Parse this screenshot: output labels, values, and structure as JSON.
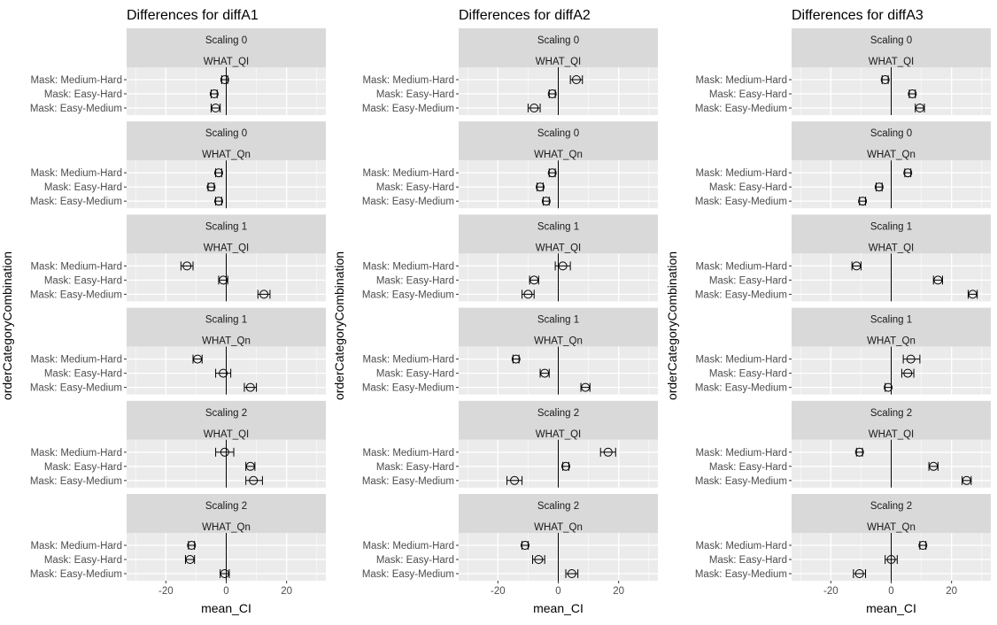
{
  "chart_data": [
    {
      "type": "scatter",
      "title": "Differences for diffA1",
      "xlabel": "mean_CI",
      "ylabel": "orderCategoryCombination",
      "xlim": [
        -33,
        33
      ],
      "xticks": [
        -20,
        0,
        20
      ],
      "categories": [
        "Mask: Medium-Hard",
        "Mask: Easy-Hard",
        "Mask: Easy-Medium"
      ],
      "grid": true,
      "facets": [
        {
          "strip_top": "Scaling 0",
          "strip_bottom": "WHAT_QI",
          "rows": [
            {
              "category": "Mask: Medium-Hard",
              "mean": -0.5,
              "lo": -1.5,
              "hi": 0.5
            },
            {
              "category": "Mask: Easy-Hard",
              "mean": -4,
              "lo": -5,
              "hi": -3
            },
            {
              "category": "Mask: Easy-Medium",
              "mean": -3.5,
              "lo": -5,
              "hi": -2
            }
          ]
        },
        {
          "strip_top": "Scaling 0",
          "strip_bottom": "WHAT_Qn",
          "rows": [
            {
              "category": "Mask: Medium-Hard",
              "mean": -2.5,
              "lo": -3.5,
              "hi": -1.5
            },
            {
              "category": "Mask: Easy-Hard",
              "mean": -5,
              "lo": -6,
              "hi": -4
            },
            {
              "category": "Mask: Easy-Medium",
              "mean": -2.5,
              "lo": -3.5,
              "hi": -1.5
            }
          ]
        },
        {
          "strip_top": "Scaling 1",
          "strip_bottom": "WHAT_QI",
          "rows": [
            {
              "category": "Mask: Medium-Hard",
              "mean": -13,
              "lo": -15,
              "hi": -11
            },
            {
              "category": "Mask: Easy-Hard",
              "mean": -1,
              "lo": -2.5,
              "hi": 0.5
            },
            {
              "category": "Mask: Easy-Medium",
              "mean": 12.5,
              "lo": 10.5,
              "hi": 14.5
            }
          ]
        },
        {
          "strip_top": "Scaling 1",
          "strip_bottom": "WHAT_Qn",
          "rows": [
            {
              "category": "Mask: Medium-Hard",
              "mean": -9.5,
              "lo": -11,
              "hi": -8
            },
            {
              "category": "Mask: Easy-Hard",
              "mean": -1,
              "lo": -3.5,
              "hi": 1.5
            },
            {
              "category": "Mask: Easy-Medium",
              "mean": 8,
              "lo": 6,
              "hi": 10
            }
          ]
        },
        {
          "strip_top": "Scaling 2",
          "strip_bottom": "WHAT_QI",
          "rows": [
            {
              "category": "Mask: Medium-Hard",
              "mean": -0.5,
              "lo": -3.5,
              "hi": 2.5
            },
            {
              "category": "Mask: Easy-Hard",
              "mean": 8,
              "lo": 6.5,
              "hi": 9.5
            },
            {
              "category": "Mask: Easy-Medium",
              "mean": 9,
              "lo": 6.5,
              "hi": 12
            }
          ]
        },
        {
          "strip_top": "Scaling 2",
          "strip_bottom": "WHAT_Qn",
          "rows": [
            {
              "category": "Mask: Medium-Hard",
              "mean": -11.5,
              "lo": -12.5,
              "hi": -10.5
            },
            {
              "category": "Mask: Easy-Hard",
              "mean": -12,
              "lo": -13.5,
              "hi": -10.5
            },
            {
              "category": "Mask: Easy-Medium",
              "mean": -0.5,
              "lo": -2,
              "hi": 1
            }
          ]
        }
      ]
    },
    {
      "type": "scatter",
      "title": "Differences for diffA2",
      "xlabel": "mean_CI",
      "ylabel": "orderCategoryCombination",
      "xlim": [
        -33,
        33
      ],
      "xticks": [
        -20,
        0,
        20
      ],
      "categories": [
        "Mask: Medium-Hard",
        "Mask: Easy-Hard",
        "Mask: Easy-Medium"
      ],
      "grid": true,
      "facets": [
        {
          "strip_top": "Scaling 0",
          "strip_bottom": "WHAT_QI",
          "rows": [
            {
              "category": "Mask: Medium-Hard",
              "mean": 6,
              "lo": 4,
              "hi": 8
            },
            {
              "category": "Mask: Easy-Hard",
              "mean": -2,
              "lo": -3,
              "hi": -1
            },
            {
              "category": "Mask: Easy-Medium",
              "mean": -8,
              "lo": -10,
              "hi": -6
            }
          ]
        },
        {
          "strip_top": "Scaling 0",
          "strip_bottom": "WHAT_Qn",
          "rows": [
            {
              "category": "Mask: Medium-Hard",
              "mean": -2,
              "lo": -3,
              "hi": -1
            },
            {
              "category": "Mask: Easy-Hard",
              "mean": -6,
              "lo": -7,
              "hi": -5
            },
            {
              "category": "Mask: Easy-Medium",
              "mean": -4,
              "lo": -5,
              "hi": -3
            }
          ]
        },
        {
          "strip_top": "Scaling 1",
          "strip_bottom": "WHAT_QI",
          "rows": [
            {
              "category": "Mask: Medium-Hard",
              "mean": 1.5,
              "lo": -1,
              "hi": 4
            },
            {
              "category": "Mask: Easy-Hard",
              "mean": -8,
              "lo": -9.5,
              "hi": -6.5
            },
            {
              "category": "Mask: Easy-Medium",
              "mean": -10,
              "lo": -12,
              "hi": -8
            }
          ]
        },
        {
          "strip_top": "Scaling 1",
          "strip_bottom": "WHAT_Qn",
          "rows": [
            {
              "category": "Mask: Medium-Hard",
              "mean": -14,
              "lo": -15,
              "hi": -13
            },
            {
              "category": "Mask: Easy-Hard",
              "mean": -4.5,
              "lo": -6,
              "hi": -3
            },
            {
              "category": "Mask: Easy-Medium",
              "mean": 9,
              "lo": 7.5,
              "hi": 10.5
            }
          ]
        },
        {
          "strip_top": "Scaling 2",
          "strip_bottom": "WHAT_QI",
          "rows": [
            {
              "category": "Mask: Medium-Hard",
              "mean": 16.5,
              "lo": 14,
              "hi": 19
            },
            {
              "category": "Mask: Easy-Hard",
              "mean": 2.5,
              "lo": 1.5,
              "hi": 3.5
            },
            {
              "category": "Mask: Easy-Medium",
              "mean": -14.5,
              "lo": -17,
              "hi": -12
            }
          ]
        },
        {
          "strip_top": "Scaling 2",
          "strip_bottom": "WHAT_Qn",
          "rows": [
            {
              "category": "Mask: Medium-Hard",
              "mean": -11,
              "lo": -12,
              "hi": -10
            },
            {
              "category": "Mask: Easy-Hard",
              "mean": -6.5,
              "lo": -8.5,
              "hi": -4.5
            },
            {
              "category": "Mask: Easy-Medium",
              "mean": 4.5,
              "lo": 2.5,
              "hi": 6.5
            }
          ]
        }
      ]
    },
    {
      "type": "scatter",
      "title": "Differences for diffA3",
      "xlabel": "mean_CI",
      "ylabel": "orderCategoryCombination",
      "xlim": [
        -33,
        33
      ],
      "xticks": [
        -20,
        0,
        20
      ],
      "categories": [
        "Mask: Medium-Hard",
        "Mask: Easy-Hard",
        "Mask: Easy-Medium"
      ],
      "grid": true,
      "facets": [
        {
          "strip_top": "Scaling 0",
          "strip_bottom": "WHAT_QI",
          "rows": [
            {
              "category": "Mask: Medium-Hard",
              "mean": -2,
              "lo": -3,
              "hi": -1
            },
            {
              "category": "Mask: Easy-Hard",
              "mean": 7,
              "lo": 6,
              "hi": 8
            },
            {
              "category": "Mask: Easy-Medium",
              "mean": 9.5,
              "lo": 8,
              "hi": 11
            }
          ]
        },
        {
          "strip_top": "Scaling 0",
          "strip_bottom": "WHAT_Qn",
          "rows": [
            {
              "category": "Mask: Medium-Hard",
              "mean": 5.5,
              "lo": 4.5,
              "hi": 6.5
            },
            {
              "category": "Mask: Easy-Hard",
              "mean": -4,
              "lo": -5,
              "hi": -3
            },
            {
              "category": "Mask: Easy-Medium",
              "mean": -9.5,
              "lo": -10.5,
              "hi": -8.5
            }
          ]
        },
        {
          "strip_top": "Scaling 1",
          "strip_bottom": "WHAT_QI",
          "rows": [
            {
              "category": "Mask: Medium-Hard",
              "mean": -11.5,
              "lo": -13,
              "hi": -10
            },
            {
              "category": "Mask: Easy-Hard",
              "mean": 15.5,
              "lo": 14,
              "hi": 17
            },
            {
              "category": "Mask: Easy-Medium",
              "mean": 27,
              "lo": 25.5,
              "hi": 28.5
            }
          ]
        },
        {
          "strip_top": "Scaling 1",
          "strip_bottom": "WHAT_Qn",
          "rows": [
            {
              "category": "Mask: Medium-Hard",
              "mean": 6.5,
              "lo": 4,
              "hi": 9.5
            },
            {
              "category": "Mask: Easy-Hard",
              "mean": 5.5,
              "lo": 3.5,
              "hi": 7.5
            },
            {
              "category": "Mask: Easy-Medium",
              "mean": -1,
              "lo": -2,
              "hi": 0
            }
          ]
        },
        {
          "strip_top": "Scaling 2",
          "strip_bottom": "WHAT_QI",
          "rows": [
            {
              "category": "Mask: Medium-Hard",
              "mean": -10.5,
              "lo": -11.5,
              "hi": -9.5
            },
            {
              "category": "Mask: Easy-Hard",
              "mean": 14,
              "lo": 12.5,
              "hi": 15.5
            },
            {
              "category": "Mask: Easy-Medium",
              "mean": 25,
              "lo": 23.5,
              "hi": 26.5
            }
          ]
        },
        {
          "strip_top": "Scaling 2",
          "strip_bottom": "WHAT_Qn",
          "rows": [
            {
              "category": "Mask: Medium-Hard",
              "mean": 10.5,
              "lo": 9.5,
              "hi": 11.5
            },
            {
              "category": "Mask: Easy-Hard",
              "mean": 0,
              "lo": -2,
              "hi": 2
            },
            {
              "category": "Mask: Easy-Medium",
              "mean": -10.5,
              "lo": -12.5,
              "hi": -8.5
            }
          ]
        }
      ]
    }
  ]
}
